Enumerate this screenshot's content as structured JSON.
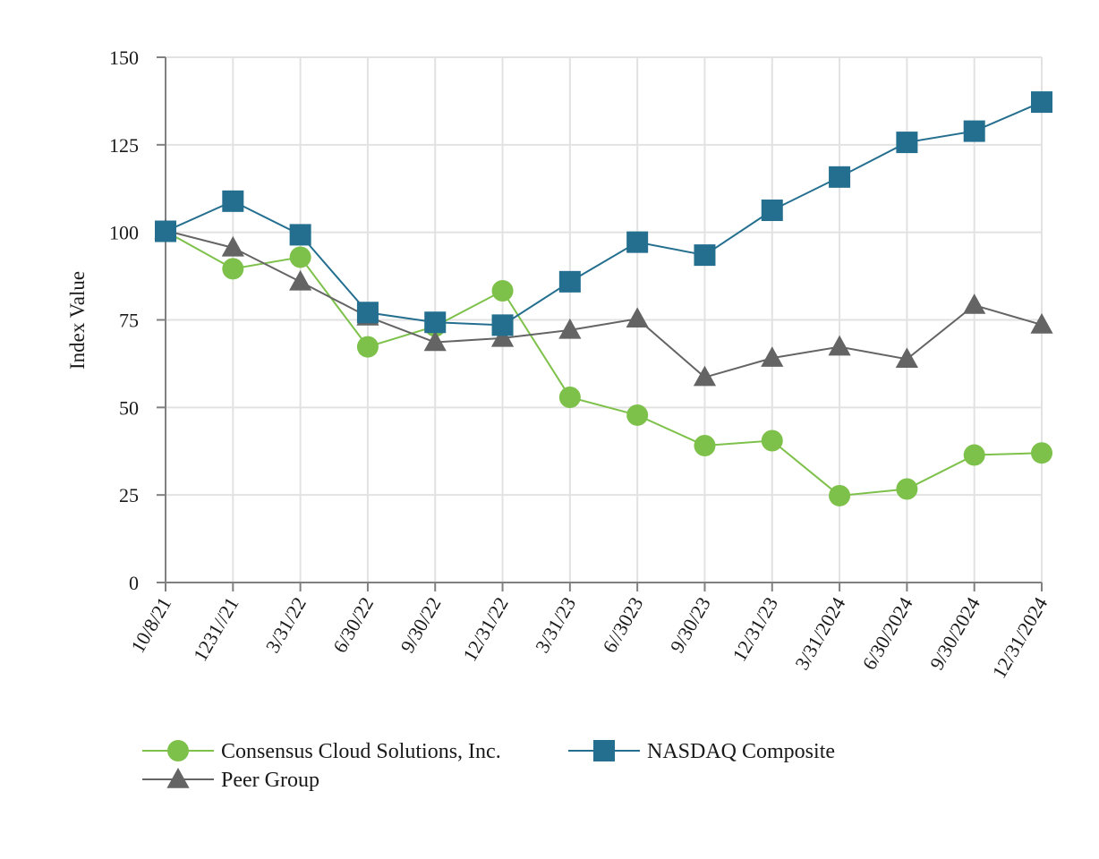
{
  "chart_data": {
    "type": "line",
    "title": "",
    "xlabel": "",
    "ylabel": "Index Value",
    "ylim": [
      0,
      150
    ],
    "yticks": [
      0,
      25,
      50,
      75,
      100,
      125,
      150
    ],
    "grid": true,
    "legend_position": "bottom",
    "categories": [
      "10/8/21",
      "1231//21",
      "3/31/22",
      "6/30/22",
      "9/30/22",
      "12/31/22",
      "3/31/23",
      "6//3023",
      "9/30/23",
      "12/31/23",
      "3/31/2024",
      "6/30/2024",
      "9/30/2024",
      "12/31/2024"
    ],
    "series": [
      {
        "name": "Consensus Cloud Solutions, Inc.",
        "color": "#7dc14a",
        "marker": "circle",
        "values": [
          100.3,
          89.6,
          92.9,
          67.3,
          73.2,
          83.3,
          52.9,
          47.8,
          39.1,
          40.5,
          24.8,
          26.7,
          36.4,
          37.0
        ]
      },
      {
        "name": "NASDAQ Composite",
        "color": "#246f8f",
        "marker": "square",
        "values": [
          100.3,
          108.9,
          99.3,
          77.1,
          74.3,
          73.5,
          85.9,
          97.2,
          93.5,
          106.3,
          115.8,
          125.7,
          128.9,
          137.2
        ]
      },
      {
        "name": "Peer Group",
        "color": "#646464",
        "marker": "triangle",
        "values": [
          100.5,
          95.6,
          85.9,
          75.9,
          68.6,
          69.8,
          72.1,
          75.3,
          58.6,
          64.1,
          67.3,
          63.8,
          79.2,
          73.6
        ]
      }
    ]
  }
}
